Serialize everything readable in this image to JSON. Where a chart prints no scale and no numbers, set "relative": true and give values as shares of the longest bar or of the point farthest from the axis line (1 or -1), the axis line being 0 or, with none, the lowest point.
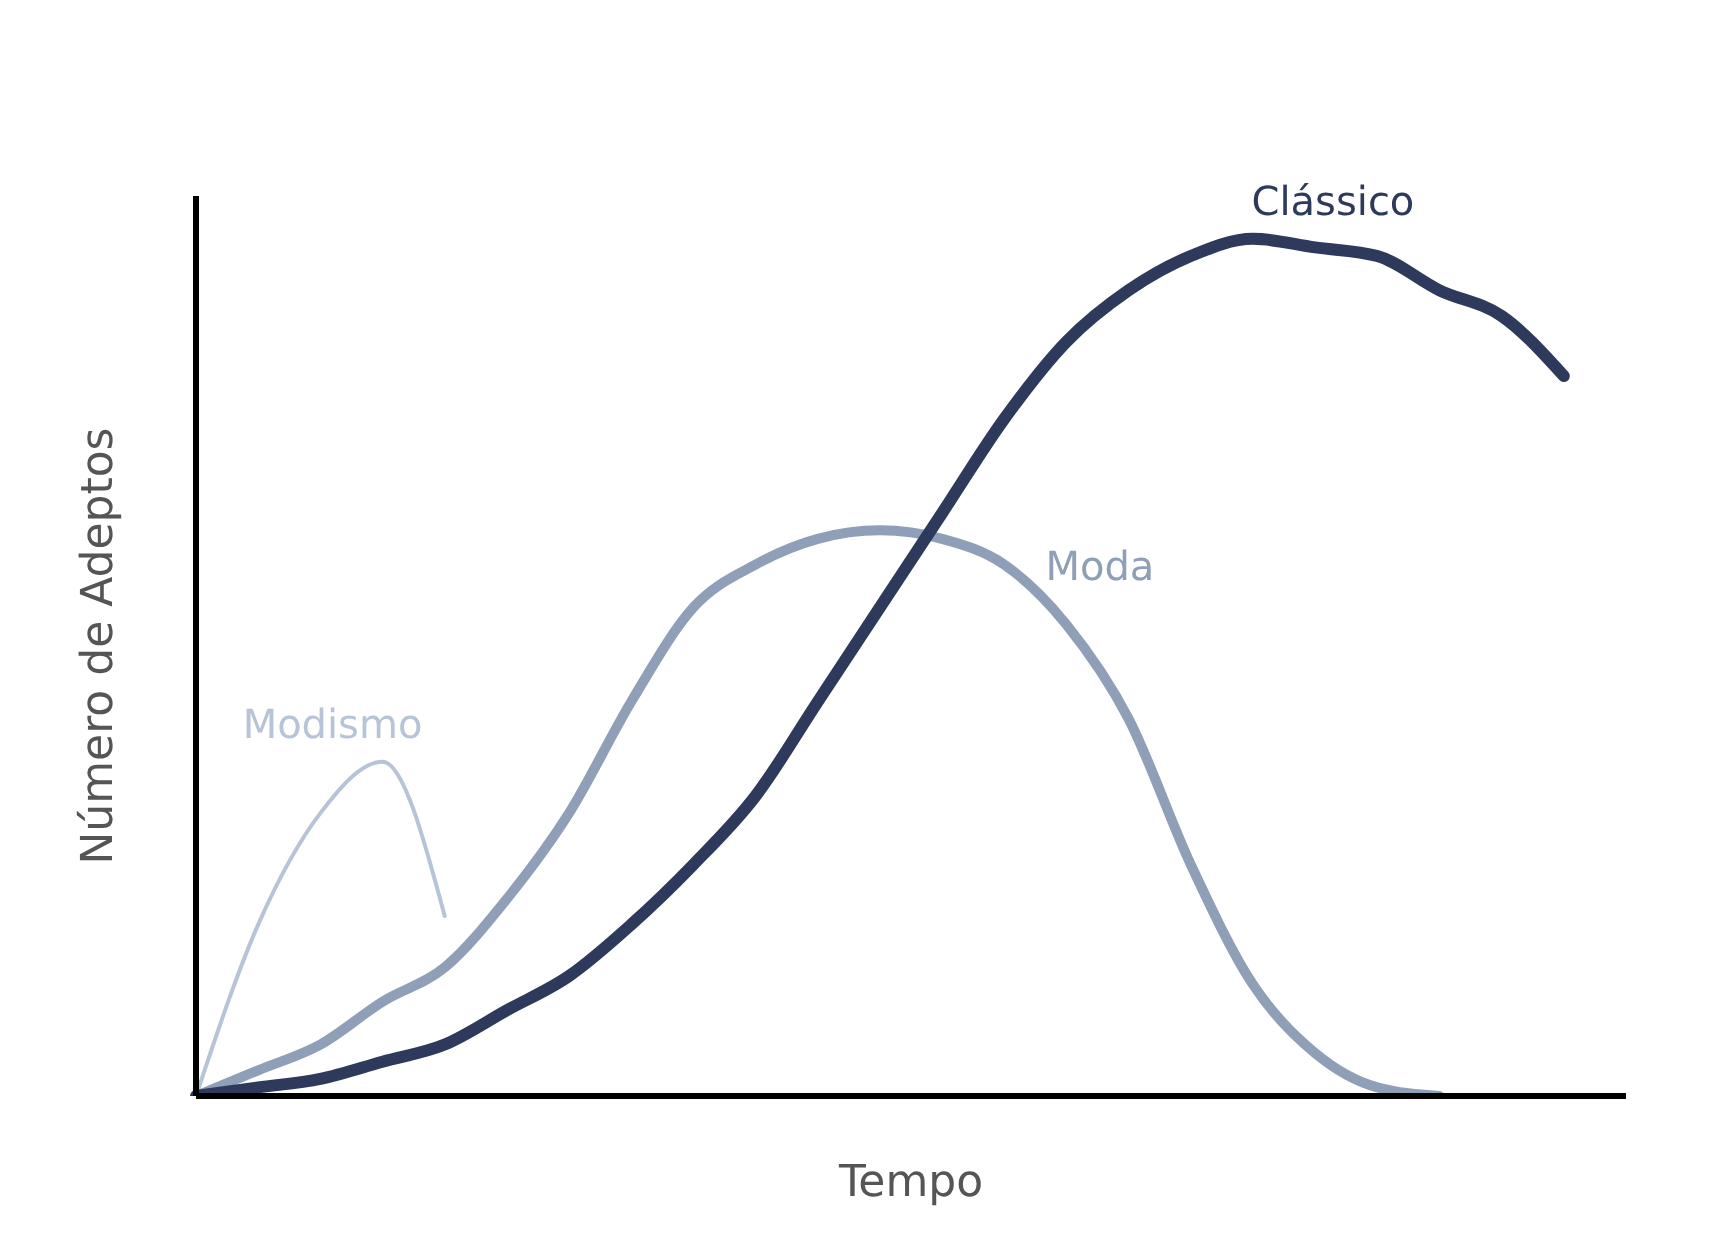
{
  "chart_data": {
    "type": "line",
    "relative": true,
    "xlabel": "Tempo",
    "ylabel": "Número de Adeptos",
    "legend": false,
    "grid": false,
    "marker": "none",
    "line_style": "solid",
    "categories": [
      null,
      null,
      null,
      null,
      null,
      null,
      null,
      null,
      null,
      null,
      null,
      null,
      null,
      null,
      null,
      null,
      null,
      null,
      null,
      null,
      null,
      null,
      null,
      null
    ],
    "series": [
      {
        "name": "Modismo",
        "color": "#b7c4d8",
        "values": [
          0,
          0.2,
          0.33,
          0.39,
          0.21,
          null,
          null,
          null,
          null,
          null,
          null,
          null,
          null,
          null,
          null,
          null,
          null,
          null,
          null,
          null,
          null,
          null,
          null,
          null
        ]
      },
      {
        "name": "Moda",
        "color": "#8f9fb8",
        "values": [
          0,
          0.03,
          0.06,
          0.11,
          0.15,
          0.23,
          0.33,
          0.46,
          0.57,
          0.62,
          0.65,
          0.66,
          0.65,
          0.62,
          0.55,
          0.44,
          0.27,
          0.13,
          0.05,
          0.01,
          0,
          null,
          null,
          null
        ]
      },
      {
        "name": "Clássico",
        "color": "#2e3a5c",
        "values": [
          0,
          0.01,
          0.02,
          0.04,
          0.06,
          0.1,
          0.14,
          0.2,
          0.27,
          0.35,
          0.46,
          0.57,
          0.68,
          0.79,
          0.88,
          0.94,
          0.98,
          1,
          0.99,
          0.98,
          0.94,
          0.91,
          0.84,
          null
        ]
      }
    ]
  }
}
